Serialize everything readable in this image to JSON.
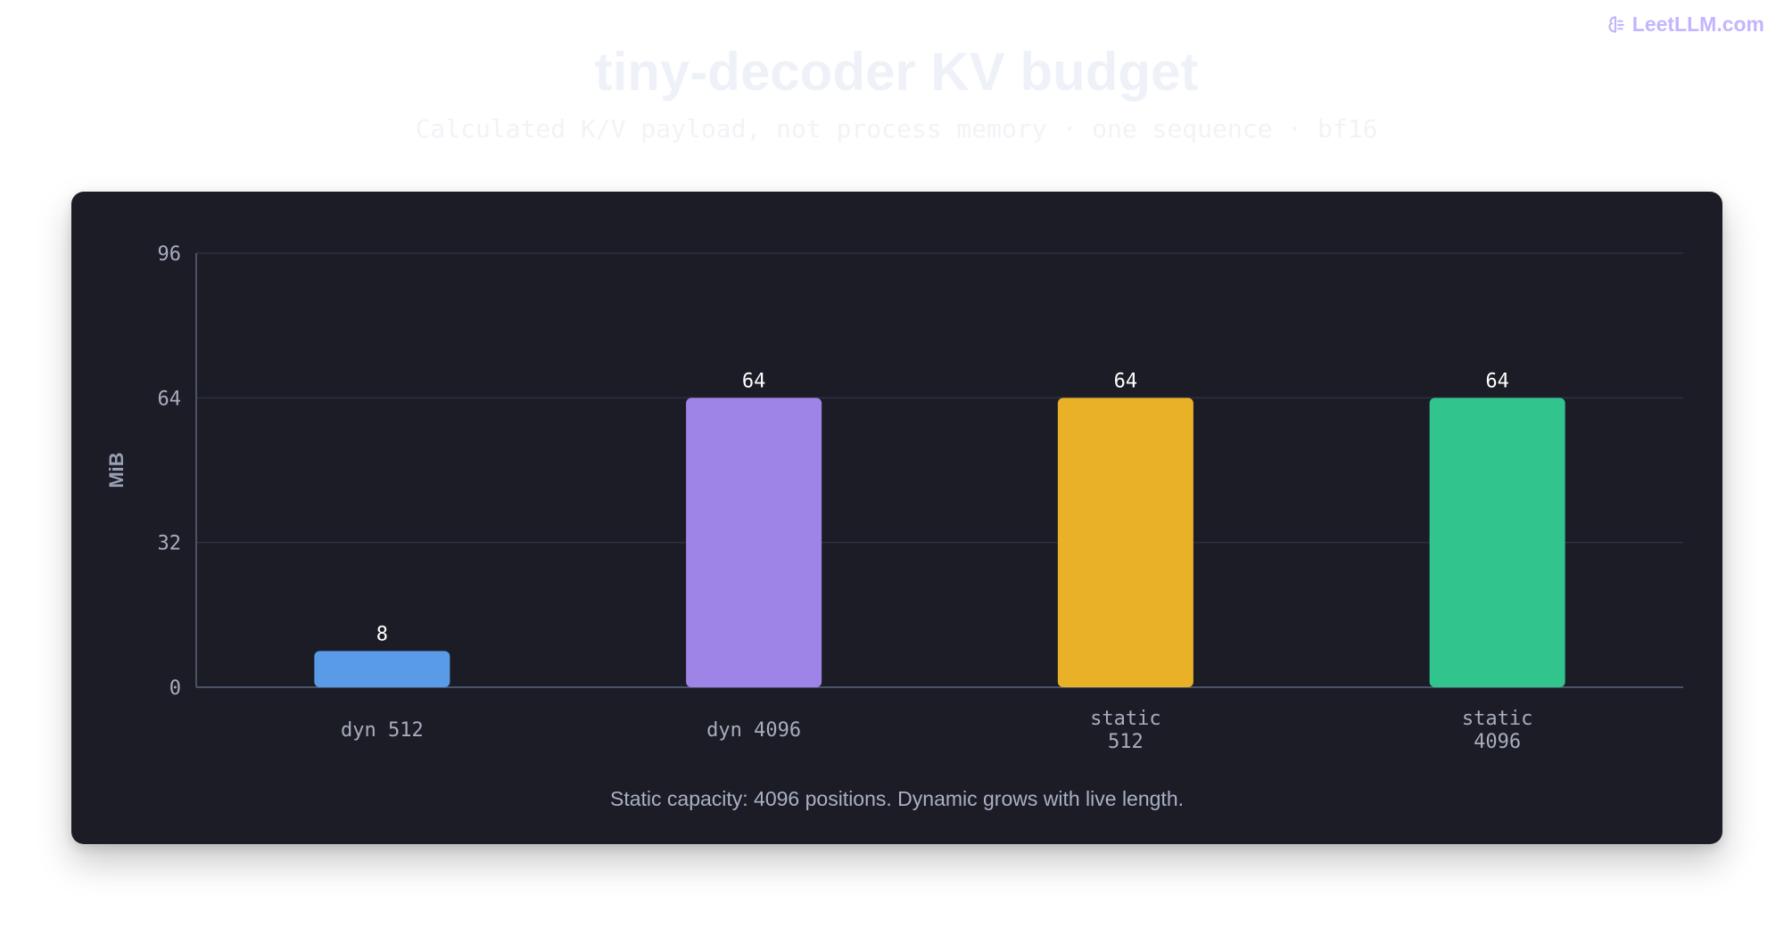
{
  "brand": {
    "text": "LeetLLM.com",
    "icon": "leetllm-logo-icon"
  },
  "title": "tiny-decoder KV budget",
  "subtitle": "Calculated K/V payload, not process memory · one sequence · bf16",
  "caption": "Static capacity: 4096 positions. Dynamic grows with live length.",
  "colors": {
    "panel_bg": "#1c1c27",
    "grid": "#2a3142",
    "axis": "#4a5366"
  },
  "chart_data": {
    "type": "bar",
    "title": "tiny-decoder KV budget",
    "subtitle": "Calculated K/V payload, not process memory · one sequence · bf16",
    "xlabel": "",
    "ylabel": "MiB",
    "ylim": [
      0,
      96
    ],
    "yticks": [
      0,
      32,
      64,
      96
    ],
    "grid": true,
    "categories": [
      [
        "dyn 512"
      ],
      [
        "dyn 4096"
      ],
      [
        "static",
        "512"
      ],
      [
        "static",
        "4096"
      ]
    ],
    "values": [
      8,
      64,
      64,
      64
    ],
    "data_labels": [
      "8",
      "64",
      "64",
      "64"
    ],
    "bar_colors": [
      "#5a9be8",
      "#9f84e8",
      "#e8b127",
      "#32c48d"
    ]
  }
}
